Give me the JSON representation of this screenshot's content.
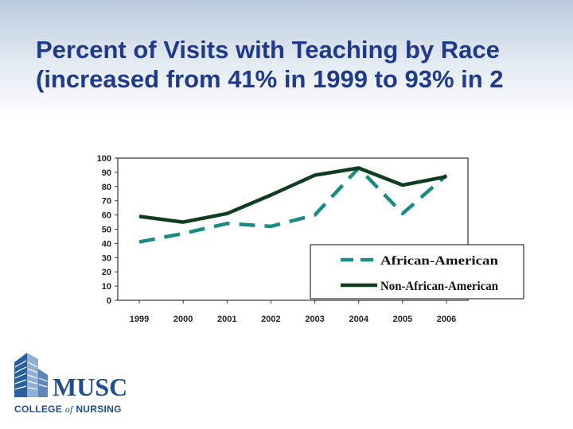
{
  "slide": {
    "title_line1": "Percent of Visits with Teaching by Race",
    "title_line2": "(increased from 41% in 1999 to 93% in 2"
  },
  "chart_data": {
    "type": "line",
    "x": [
      "1999",
      "2000",
      "2001",
      "2002",
      "2003",
      "2004",
      "2005",
      "2006"
    ],
    "ylim": [
      0,
      100
    ],
    "yticks": [
      "0",
      "10",
      "20",
      "30",
      "40",
      "50",
      "60",
      "70",
      "80",
      "90",
      "100"
    ],
    "series": [
      {
        "name": "African-American",
        "values": [
          41,
          47,
          54,
          52,
          60,
          93,
          61,
          88
        ],
        "color": "#1a8a84",
        "dashed": true
      },
      {
        "name": "Non-African-American",
        "values": [
          59,
          55,
          61,
          74,
          88,
          93,
          81,
          87
        ],
        "color": "#0f3d1f",
        "dashed": false
      }
    ],
    "legend_position": "bottom-right-inside",
    "grid": false
  },
  "logo": {
    "word": "MUSC",
    "sub_prefix": "COLLEGE ",
    "sub_italic": "of",
    "sub_suffix": " NURSING",
    "color": "#1f4f8f",
    "icon": "building-icon"
  }
}
